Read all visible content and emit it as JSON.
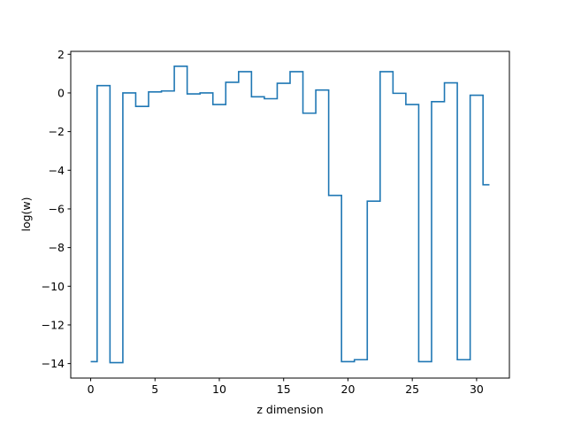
{
  "chart_data": {
    "type": "line",
    "drawstyle": "steps-mid",
    "xlabel": "z dimension",
    "ylabel": "log(w)",
    "xlim": [
      -1.55,
      32.55
    ],
    "ylim": [
      -14.75,
      2.15
    ],
    "xticks": [
      0,
      5,
      10,
      15,
      20,
      25,
      30
    ],
    "yticks": [
      2,
      0,
      -2,
      -4,
      -6,
      -8,
      -10,
      -12,
      -14
    ],
    "ytick_labels": [
      "2",
      "0",
      "−2",
      "−4",
      "−6",
      "−8",
      "−10",
      "−12",
      "−14"
    ],
    "grid": false,
    "legend": "none",
    "line_color": "#1f77b4",
    "series": [
      {
        "x": [
          0,
          1,
          2,
          3,
          4,
          5,
          6,
          7,
          8,
          9,
          10,
          11,
          12,
          13,
          14,
          15,
          16,
          17,
          18,
          19,
          20,
          21,
          22,
          23,
          24,
          25,
          26,
          27,
          28,
          29,
          30,
          31
        ],
        "values": [
          -13.9,
          0.38,
          -13.95,
          0.0,
          -0.7,
          0.05,
          0.1,
          1.38,
          -0.05,
          0.0,
          -0.6,
          0.55,
          1.1,
          -0.2,
          -0.3,
          0.5,
          1.1,
          -1.05,
          0.15,
          -5.3,
          -13.9,
          -13.8,
          -5.6,
          1.1,
          -0.02,
          -0.6,
          -13.9,
          -0.45,
          0.52,
          -13.8,
          -0.12,
          -4.75
        ]
      }
    ]
  }
}
